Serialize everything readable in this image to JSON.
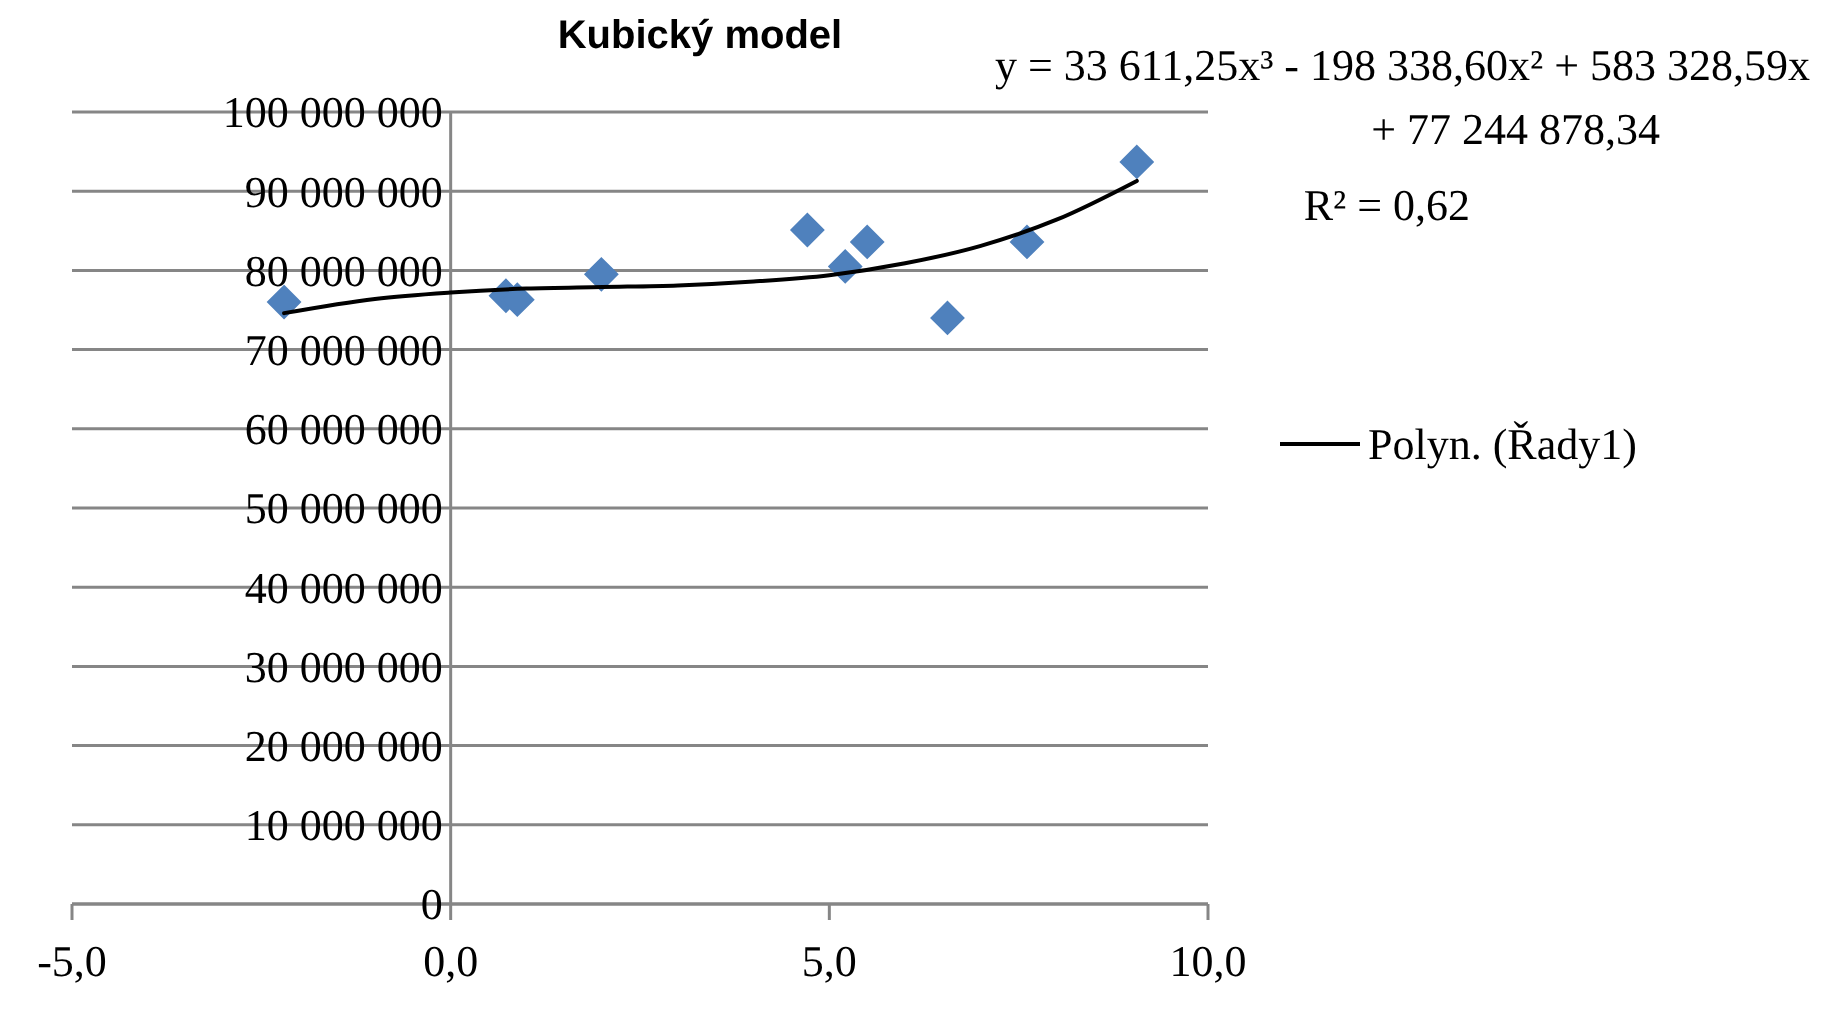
{
  "chart_data": {
    "type": "scatter",
    "title": "Kubický model",
    "series": [
      {
        "color": "#4f81bd",
        "marker": "diamond",
        "x": [
          -2.2,
          0.73,
          0.88,
          1.99,
          4.71,
          5.21,
          5.5,
          6.56,
          7.61,
          9.06
        ],
        "values": [
          76000000,
          76800000,
          76300000,
          79500000,
          85100000,
          80500000,
          83600000,
          74000000,
          83600000,
          93700000
        ]
      },
      {
        "type": "line",
        "name": "Polyn. (Řady1)",
        "color": "#000000",
        "marker": "none",
        "x": [
          -2.2,
          -1,
          0,
          1,
          2,
          3,
          4,
          5,
          6,
          7,
          8,
          9.06
        ],
        "values": [
          74600000,
          76400000,
          77200000,
          77700000,
          77900000,
          78100000,
          78600000,
          79400000,
          80900000,
          83100000,
          86400000,
          91300000
        ]
      }
    ],
    "xlim": [
      -5,
      10
    ],
    "xticks": [
      {
        "value": -5,
        "label": "-5,0"
      },
      {
        "value": 0,
        "label": "0,0"
      },
      {
        "value": 5,
        "label": "5,0"
      },
      {
        "value": 10,
        "label": "10,0"
      }
    ],
    "ylim": [
      0,
      100000000
    ],
    "yticks": [
      {
        "value": 0,
        "label": "0"
      },
      {
        "value": 10000000,
        "label": "10 000 000"
      },
      {
        "value": 20000000,
        "label": "20 000 000"
      },
      {
        "value": 30000000,
        "label": "30 000 000"
      },
      {
        "value": 40000000,
        "label": "40 000 000"
      },
      {
        "value": 50000000,
        "label": "50 000 000"
      },
      {
        "value": 60000000,
        "label": "60 000 000"
      },
      {
        "value": 70000000,
        "label": "70 000 000"
      },
      {
        "value": 80000000,
        "label": "80 000 000"
      },
      {
        "value": 90000000,
        "label": "90 000 000"
      },
      {
        "value": 100000000,
        "label": "100 000 000"
      }
    ],
    "grid": "y",
    "legend": "right",
    "annotations": [
      "y = 33 611,25x³ - 198 338,60x² + 583 328,59x + 77 244 878,34",
      "R² = 0,62"
    ]
  }
}
